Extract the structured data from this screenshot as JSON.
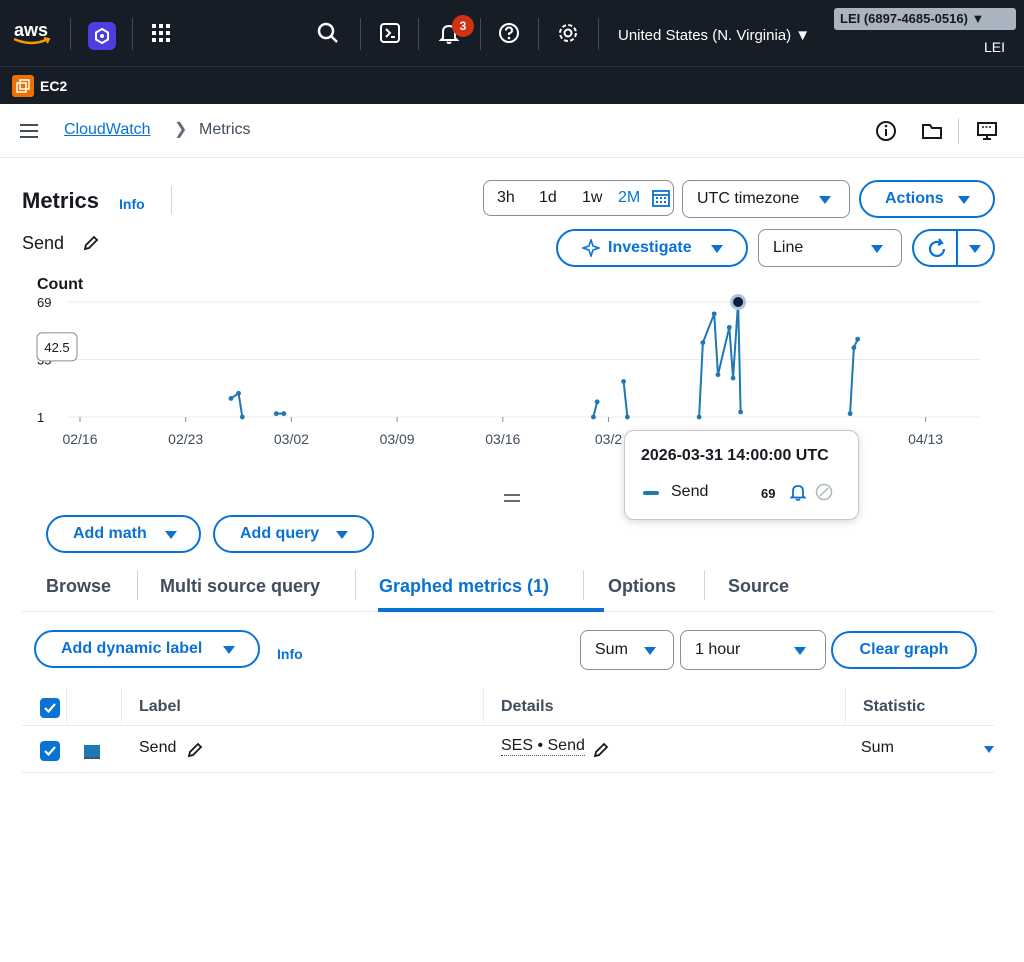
{
  "topbar": {
    "logo": "aws",
    "notifications_count": "3",
    "region": "United States (N. Virginia) ▼",
    "account": "LEI (6897-4685-0516) ▼",
    "user": "LEI",
    "service": "EC2"
  },
  "breadcrumb": {
    "parent": "CloudWatch",
    "current": "Metrics"
  },
  "header": {
    "title": "Metrics",
    "info": "Info",
    "metric_name": "Send"
  },
  "time_range": {
    "options": [
      "3h",
      "1d",
      "1w",
      "2M"
    ],
    "selected": "2M",
    "timezone": "UTC timezone"
  },
  "buttons": {
    "actions": "Actions",
    "investigate": "Investigate",
    "graph_type": "Line",
    "add_math": "Add math",
    "add_query": "Add query",
    "add_dynamic_label": "Add dynamic label",
    "info": "Info",
    "statistic": "Sum",
    "period": "1 hour",
    "clear_graph": "Clear graph"
  },
  "chart_data": {
    "type": "line",
    "ylabel": "Count",
    "y_ticks": [
      "69",
      "35",
      "1"
    ],
    "hover_value_label": "42.5",
    "x_ticks": [
      "02/16",
      "02/23",
      "03/02",
      "03/09",
      "03/16",
      "03/2",
      "04/13"
    ],
    "series": [
      {
        "name": "Send",
        "color": "#1f77b4",
        "points": [
          {
            "x": "2026-02-26",
            "y": 12
          },
          {
            "x": "2026-02-26 12:00",
            "y": 15
          },
          {
            "x": "2026-02-26 18:00",
            "y": 1
          },
          {
            "x": "2026-03-01",
            "y": 3
          },
          {
            "x": "2026-03-01 12:00",
            "y": 3
          },
          {
            "x": "2026-03-22",
            "y": 1
          },
          {
            "x": "2026-03-22 06:00",
            "y": 10
          },
          {
            "x": "2026-03-24",
            "y": 22
          },
          {
            "x": "2026-03-24 06:00",
            "y": 1
          },
          {
            "x": "2026-03-29",
            "y": 1
          },
          {
            "x": "2026-03-29 06:00",
            "y": 45
          },
          {
            "x": "2026-03-30",
            "y": 62
          },
          {
            "x": "2026-03-30 06:00",
            "y": 26
          },
          {
            "x": "2026-03-31",
            "y": 54
          },
          {
            "x": "2026-03-31 06:00",
            "y": 24
          },
          {
            "x": "2026-03-31 14:00",
            "y": 69
          },
          {
            "x": "2026-03-31 18:00",
            "y": 4
          },
          {
            "x": "2026-04-08",
            "y": 3
          },
          {
            "x": "2026-04-08 06:00",
            "y": 42
          },
          {
            "x": "2026-04-08 12:00",
            "y": 47
          }
        ]
      }
    ]
  },
  "tooltip": {
    "timestamp": "2026-03-31 14:00:00 UTC",
    "series": "Send",
    "value": "69"
  },
  "tabs": [
    "Browse",
    "Multi source query",
    "Graphed metrics (1)",
    "Options",
    "Source"
  ],
  "active_tab": "Graphed metrics (1)",
  "table": {
    "headers": {
      "label": "Label",
      "details": "Details",
      "statistic": "Statistic"
    },
    "rows": [
      {
        "label": "Send",
        "details": "SES • Send",
        "statistic": "Sum",
        "color": "#1f77b4"
      }
    ]
  }
}
